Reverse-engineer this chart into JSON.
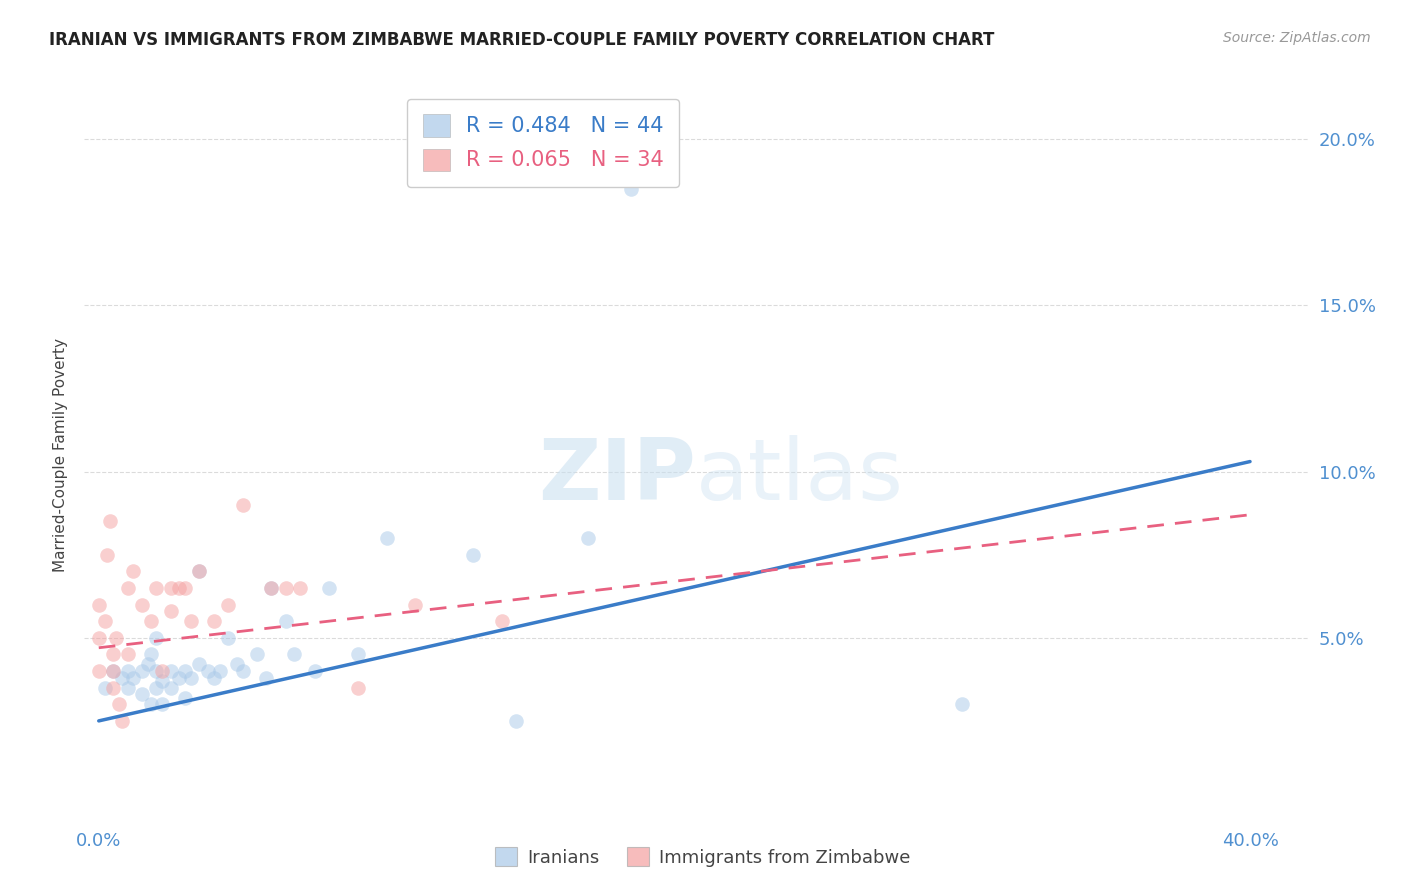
{
  "title": "IRANIAN VS IMMIGRANTS FROM ZIMBABWE MARRIED-COUPLE FAMILY POVERTY CORRELATION CHART",
  "source": "Source: ZipAtlas.com",
  "ylabel": "Married-Couple Family Poverty",
  "ytick_labels": [
    "20.0%",
    "15.0%",
    "10.0%",
    "5.0%"
  ],
  "ytick_values": [
    0.2,
    0.15,
    0.1,
    0.05
  ],
  "xlim": [
    -0.005,
    0.42
  ],
  "ylim": [
    -0.005,
    0.215
  ],
  "background_color": "#ffffff",
  "grid_color": "#cccccc",
  "iranians_color": "#a8c8e8",
  "zimbabwe_color": "#f4a0a0",
  "iranians_line_color": "#3a7cc8",
  "zimbabwe_line_color": "#e86080",
  "legend_iranians_R": "0.484",
  "legend_iranians_N": "44",
  "legend_zimbabwe_R": "0.065",
  "legend_zimbabwe_N": "34",
  "iranians_scatter_x": [
    0.002,
    0.005,
    0.008,
    0.01,
    0.01,
    0.012,
    0.015,
    0.015,
    0.017,
    0.018,
    0.018,
    0.02,
    0.02,
    0.02,
    0.022,
    0.022,
    0.025,
    0.025,
    0.028,
    0.03,
    0.03,
    0.032,
    0.035,
    0.035,
    0.038,
    0.04,
    0.042,
    0.045,
    0.048,
    0.05,
    0.055,
    0.058,
    0.06,
    0.065,
    0.068,
    0.075,
    0.08,
    0.09,
    0.1,
    0.13,
    0.145,
    0.17,
    0.185,
    0.3
  ],
  "iranians_scatter_y": [
    0.035,
    0.04,
    0.038,
    0.035,
    0.04,
    0.038,
    0.033,
    0.04,
    0.042,
    0.03,
    0.045,
    0.035,
    0.04,
    0.05,
    0.03,
    0.037,
    0.035,
    0.04,
    0.038,
    0.032,
    0.04,
    0.038,
    0.042,
    0.07,
    0.04,
    0.038,
    0.04,
    0.05,
    0.042,
    0.04,
    0.045,
    0.038,
    0.065,
    0.055,
    0.045,
    0.04,
    0.065,
    0.045,
    0.08,
    0.075,
    0.025,
    0.08,
    0.185,
    0.03
  ],
  "zimbabwe_scatter_x": [
    0.0,
    0.0,
    0.0,
    0.002,
    0.003,
    0.004,
    0.005,
    0.005,
    0.005,
    0.006,
    0.007,
    0.008,
    0.01,
    0.01,
    0.012,
    0.015,
    0.018,
    0.02,
    0.022,
    0.025,
    0.025,
    0.028,
    0.03,
    0.032,
    0.035,
    0.04,
    0.045,
    0.05,
    0.06,
    0.065,
    0.07,
    0.09,
    0.11,
    0.14
  ],
  "zimbabwe_scatter_y": [
    0.04,
    0.05,
    0.06,
    0.055,
    0.075,
    0.085,
    0.035,
    0.04,
    0.045,
    0.05,
    0.03,
    0.025,
    0.045,
    0.065,
    0.07,
    0.06,
    0.055,
    0.065,
    0.04,
    0.058,
    0.065,
    0.065,
    0.065,
    0.055,
    0.07,
    0.055,
    0.06,
    0.09,
    0.065,
    0.065,
    0.065,
    0.035,
    0.06,
    0.055
  ],
  "iranians_trend_x": [
    0.0,
    0.4
  ],
  "iranians_trend_y": [
    0.025,
    0.103
  ],
  "zimbabwe_trend_x": [
    0.0,
    0.4
  ],
  "zimbabwe_trend_y": [
    0.047,
    0.087
  ],
  "watermark_zip": "ZIP",
  "watermark_atlas": "atlas",
  "scatter_size": 110,
  "scatter_alpha": 0.5,
  "tick_color": "#5090d0",
  "axis_label_color": "#444444",
  "title_fontsize": 12,
  "source_fontsize": 10,
  "tick_fontsize": 13,
  "ylabel_fontsize": 11
}
